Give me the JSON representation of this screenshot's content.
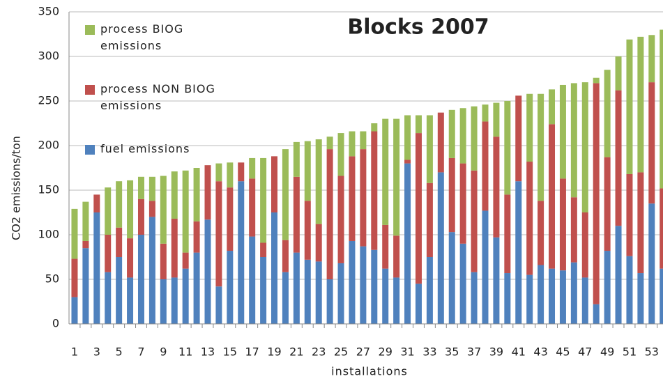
{
  "chart_data": {
    "type": "stacked-bar",
    "title": "Blocks 2007",
    "x_label": "installations",
    "y_label": "CO2 emissions/ton",
    "categories": [
      "1",
      null,
      "3",
      null,
      "5",
      null,
      "7",
      null,
      "9",
      null,
      "11",
      null,
      "13",
      null,
      "15",
      null,
      "17",
      null,
      "19",
      null,
      "21",
      null,
      "23",
      null,
      "25",
      null,
      "27",
      null,
      "29",
      null,
      "31",
      null,
      "33",
      null,
      "35",
      null,
      "37",
      null,
      "39",
      null,
      "41",
      null,
      "43",
      null,
      "45",
      null,
      "47",
      null,
      "49",
      null,
      "51",
      null,
      "53",
      null
    ],
    "series": [
      {
        "name": "fuel emissions",
        "color": "#4f81bd",
        "values": [
          30,
          85,
          125,
          58,
          75,
          52,
          100,
          120,
          50,
          52,
          62,
          80,
          117,
          42,
          82,
          160,
          98,
          75,
          125,
          58,
          80,
          72,
          70,
          50,
          68,
          93,
          87,
          83,
          62,
          52,
          180,
          45,
          75,
          170,
          103,
          90,
          58,
          127,
          97,
          57,
          160,
          55,
          66,
          62,
          60,
          69,
          52,
          22,
          82,
          110,
          76,
          57,
          135,
          62
        ]
      },
      {
        "name": "process NON BIOG emissions",
        "color": "#c0504d",
        "values": [
          43,
          8,
          20,
          42,
          33,
          44,
          40,
          18,
          40,
          66,
          18,
          35,
          61,
          118,
          71,
          21,
          65,
          16,
          63,
          36,
          85,
          66,
          42,
          146,
          98,
          95,
          109,
          133,
          49,
          47,
          4,
          169,
          83,
          67,
          83,
          90,
          114,
          100,
          113,
          88,
          96,
          127,
          72,
          162,
          103,
          73,
          73,
          248,
          105,
          152,
          92,
          113,
          136,
          90
        ]
      },
      {
        "name": "process BIOG emissions",
        "color": "#9bbb59",
        "values": [
          56,
          44,
          0,
          53,
          52,
          65,
          25,
          27,
          76,
          53,
          92,
          60,
          0,
          20,
          28,
          0,
          23,
          95,
          0,
          102,
          39,
          67,
          95,
          14,
          48,
          28,
          20,
          9,
          119,
          131,
          50,
          20,
          76,
          0,
          54,
          62,
          72,
          19,
          38,
          105,
          0,
          76,
          120,
          39,
          105,
          128,
          146,
          6,
          98,
          38,
          151,
          152,
          53,
          178
        ]
      }
    ],
    "ylim": [
      0,
      350
    ],
    "yticks": [
      0,
      50,
      100,
      150,
      200,
      250,
      300,
      350
    ],
    "grid": true
  }
}
